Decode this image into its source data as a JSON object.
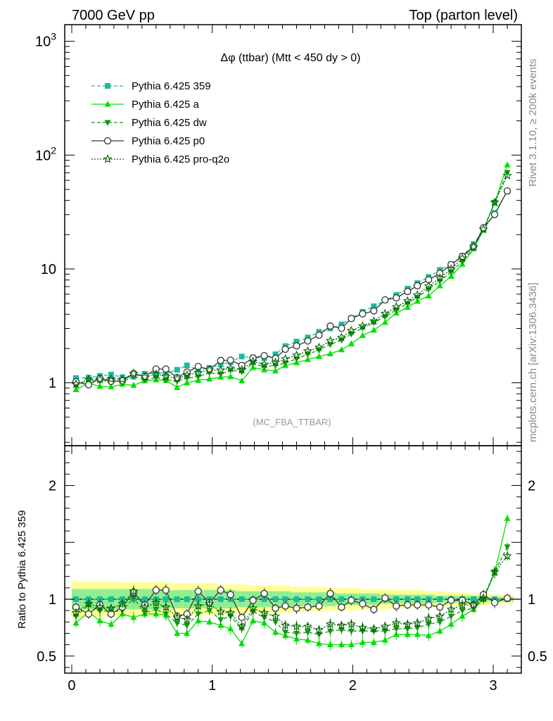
{
  "header": {
    "left": "7000 GeV pp",
    "right": "Top (parton level)"
  },
  "plot_title": "Δφ (ttbar) (Mtt < 450 dy > 0)",
  "watermark": "(MC_FBA_TTBAR)",
  "side_text": {
    "rivet": "Rivet 3.1.10, ≥ 200k events",
    "mcplots": "mcplots.cern.ch [arXiv:1306.3436]"
  },
  "ratio_ylabel": "Ratio to Pythia 6.425 359",
  "main_ticks": [
    {
      "value": 1000,
      "base": "10",
      "exp": "3"
    },
    {
      "value": 100,
      "base": "10",
      "exp": "2"
    },
    {
      "value": 10,
      "base": "10",
      "exp": ""
    },
    {
      "value": 1,
      "base": "1",
      "exp": ""
    }
  ],
  "ratio_ticks": [
    {
      "value": 2,
      "label": "2"
    },
    {
      "value": 1,
      "label": "1"
    },
    {
      "value": 0.5,
      "label": "0.5"
    }
  ],
  "x_ticks": [
    {
      "value": 0,
      "label": "0"
    },
    {
      "value": 1,
      "label": "1"
    },
    {
      "value": 2,
      "label": "2"
    },
    {
      "value": 3,
      "label": "3"
    }
  ],
  "chart_data": {
    "type": "line",
    "xlim": [
      -0.05,
      3.2
    ],
    "ylim_main": [
      0.28,
      1400
    ],
    "ylog": true,
    "ylim_ratio": [
      0.35,
      2.35
    ],
    "x": [
      0.03,
      0.12,
      0.2,
      0.28,
      0.36,
      0.44,
      0.52,
      0.6,
      0.67,
      0.75,
      0.82,
      0.9,
      0.98,
      1.06,
      1.13,
      1.21,
      1.29,
      1.37,
      1.45,
      1.52,
      1.6,
      1.68,
      1.76,
      1.84,
      1.92,
      1.99,
      2.07,
      2.15,
      2.23,
      2.31,
      2.39,
      2.46,
      2.54,
      2.62,
      2.7,
      2.78,
      2.86,
      2.93,
      3.01,
      3.1
    ],
    "band": {
      "inner": [
        0.09,
        0.09,
        0.09,
        0.09,
        0.09,
        0.09,
        0.09,
        0.09,
        0.08,
        0.08,
        0.08,
        0.08,
        0.08,
        0.08,
        0.08,
        0.07,
        0.07,
        0.07,
        0.07,
        0.07,
        0.06,
        0.06,
        0.06,
        0.06,
        0.05,
        0.05,
        0.05,
        0.05,
        0.04,
        0.04,
        0.04,
        0.04,
        0.04,
        0.03,
        0.03,
        0.03,
        0.03,
        0.02,
        0.02,
        0.02
      ],
      "outer": [
        0.16,
        0.16,
        0.16,
        0.16,
        0.15,
        0.15,
        0.15,
        0.15,
        0.15,
        0.14,
        0.14,
        0.14,
        0.14,
        0.13,
        0.13,
        0.13,
        0.12,
        0.12,
        0.12,
        0.12,
        0.11,
        0.11,
        0.11,
        0.1,
        0.1,
        0.1,
        0.09,
        0.09,
        0.09,
        0.08,
        0.08,
        0.08,
        0.07,
        0.07,
        0.06,
        0.06,
        0.05,
        0.05,
        0.04,
        0.04
      ],
      "inner_color": "#90ee90",
      "outer_color": "#ffff99"
    },
    "series": [
      {
        "name": "Pythia 6.425 359",
        "color": "#1abc9c",
        "dash": "5,3",
        "marker": "square",
        "values": [
          1.1,
          1.11,
          1.15,
          1.18,
          1.12,
          1.13,
          1.2,
          1.22,
          1.22,
          1.3,
          1.42,
          1.3,
          1.35,
          1.45,
          1.52,
          1.7,
          1.67,
          1.65,
          1.78,
          2.1,
          2.3,
          2.5,
          2.8,
          3.0,
          3.25,
          3.7,
          4.2,
          4.7,
          5.3,
          5.9,
          6.7,
          7.5,
          8.5,
          9.8,
          11.0,
          13.0,
          16.5,
          22.0,
          31.0,
          48.0
        ],
        "ratio": [
          1,
          1,
          1,
          1,
          1,
          1,
          1,
          1,
          1,
          1,
          1,
          1,
          1,
          1,
          1,
          1,
          1,
          1,
          1,
          1,
          1,
          1,
          1,
          1,
          1,
          1,
          1,
          1,
          1,
          1,
          1,
          1,
          1,
          1,
          1,
          1,
          1,
          1,
          1,
          1
        ]
      },
      {
        "name": "Pythia 6.425 a",
        "color": "#00e000",
        "dash": "",
        "marker": "triangle-up",
        "values": [
          0.87,
          0.99,
          0.93,
          0.92,
          0.97,
          0.95,
          1.04,
          1.06,
          1.05,
          0.91,
          1.0,
          1.05,
          1.08,
          1.12,
          1.13,
          1.04,
          1.36,
          1.3,
          1.27,
          1.42,
          1.5,
          1.6,
          1.7,
          1.8,
          1.95,
          2.2,
          2.6,
          2.9,
          3.4,
          4.1,
          4.6,
          5.2,
          5.8,
          7.1,
          8.6,
          11.0,
          15.0,
          22.0,
          38.0,
          82.0
        ],
        "ratio": [
          0.79,
          0.89,
          0.81,
          0.78,
          0.87,
          0.84,
          0.87,
          0.87,
          0.86,
          0.7,
          0.7,
          0.81,
          0.8,
          0.77,
          0.74,
          0.61,
          0.81,
          0.79,
          0.71,
          0.68,
          0.65,
          0.64,
          0.61,
          0.6,
          0.6,
          0.6,
          0.62,
          0.62,
          0.64,
          0.69,
          0.69,
          0.69,
          0.68,
          0.72,
          0.78,
          0.85,
          0.91,
          1.0,
          1.23,
          1.71
        ]
      },
      {
        "name": "Pythia 6.425 dw",
        "color": "#119911",
        "dash": "5,3",
        "marker": "triangle-down",
        "values": [
          0.94,
          1.05,
          1.03,
          1.05,
          1.01,
          1.14,
          1.06,
          1.11,
          1.06,
          1.03,
          1.1,
          1.13,
          1.22,
          1.19,
          1.29,
          1.25,
          1.48,
          1.38,
          1.42,
          1.49,
          1.62,
          1.78,
          1.94,
          2.17,
          2.37,
          2.68,
          3.02,
          3.38,
          3.81,
          4.36,
          4.96,
          5.61,
          6.62,
          7.82,
          9.39,
          11.7,
          15.2,
          22.3,
          38.4,
          70.2
        ],
        "ratio": [
          0.85,
          0.95,
          0.9,
          0.89,
          0.9,
          1.01,
          0.88,
          0.91,
          0.87,
          0.79,
          0.77,
          0.87,
          0.9,
          0.82,
          0.85,
          0.74,
          0.89,
          0.84,
          0.8,
          0.71,
          0.7,
          0.71,
          0.69,
          0.72,
          0.73,
          0.72,
          0.72,
          0.72,
          0.72,
          0.74,
          0.74,
          0.75,
          0.78,
          0.8,
          0.85,
          0.9,
          0.92,
          1.01,
          1.24,
          1.46
        ]
      },
      {
        "name": "Pythia 6.425 p0",
        "color": "#333333",
        "dash": "",
        "marker": "circle",
        "values": [
          1.02,
          0.96,
          1.09,
          1.03,
          1.04,
          1.2,
          1.14,
          1.32,
          1.32,
          1.11,
          1.24,
          1.39,
          1.31,
          1.57,
          1.58,
          1.42,
          1.65,
          1.73,
          1.64,
          1.97,
          2.11,
          2.33,
          2.62,
          3.15,
          3.01,
          3.67,
          4.03,
          4.28,
          5.35,
          5.57,
          6.34,
          7.12,
          8.04,
          9.16,
          10.9,
          12.9,
          15.7,
          23.0,
          30.1,
          48.5
        ],
        "ratio": [
          0.93,
          0.87,
          0.95,
          0.87,
          0.93,
          1.06,
          0.95,
          1.08,
          1.08,
          0.85,
          0.87,
          1.07,
          0.97,
          1.08,
          1.04,
          0.84,
          0.99,
          1.05,
          0.92,
          0.94,
          0.92,
          0.93,
          0.94,
          1.05,
          0.93,
          0.99,
          0.96,
          0.91,
          1.01,
          0.94,
          0.95,
          0.95,
          0.95,
          0.93,
          0.99,
          0.99,
          0.95,
          1.04,
          0.97,
          1.01
        ]
      },
      {
        "name": "Pythia 6.425 pro-q2o",
        "color": "#006400",
        "dash": "2,2",
        "marker": "star",
        "values": [
          0.97,
          1.07,
          1.07,
          1.08,
          1.07,
          1.21,
          1.12,
          1.19,
          1.14,
          1.09,
          1.17,
          1.22,
          1.3,
          1.29,
          1.34,
          1.3,
          1.54,
          1.45,
          1.51,
          1.62,
          1.74,
          1.9,
          2.04,
          2.34,
          2.5,
          2.87,
          3.15,
          3.48,
          4.05,
          4.64,
          5.23,
          5.9,
          7.05,
          8.33,
          9.97,
          12.4,
          15.7,
          22.3,
          38.4,
          66.2
        ],
        "ratio": [
          0.88,
          0.96,
          0.93,
          0.92,
          0.96,
          1.07,
          0.93,
          0.97,
          0.93,
          0.84,
          0.82,
          0.94,
          0.96,
          0.89,
          0.88,
          0.76,
          0.92,
          0.88,
          0.85,
          0.77,
          0.76,
          0.76,
          0.73,
          0.78,
          0.77,
          0.78,
          0.75,
          0.74,
          0.76,
          0.79,
          0.78,
          0.79,
          0.83,
          0.85,
          0.91,
          0.95,
          0.95,
          1.01,
          1.24,
          1.38
        ]
      }
    ]
  }
}
